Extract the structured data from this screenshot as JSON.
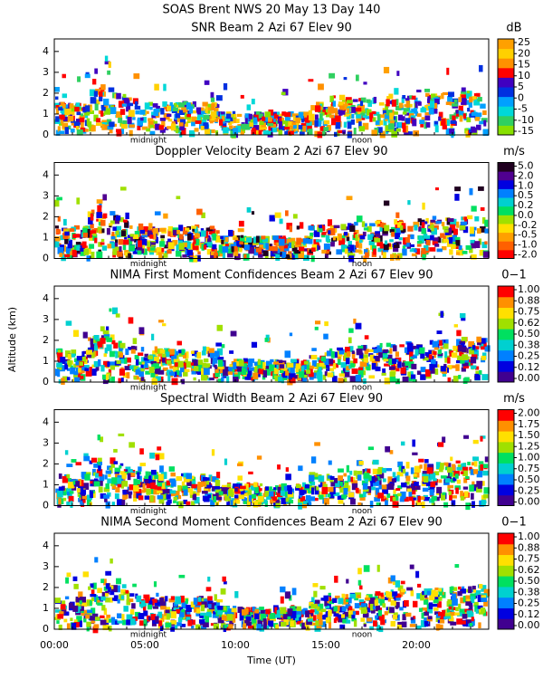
{
  "figure": {
    "title": "SOAS Brent NWS  20 May 13 Day 140",
    "ylabel": "Altitude (km)",
    "xlabel": "Time (UT)"
  },
  "chart_data": [
    {
      "type": "heatmap",
      "title": "SNR Beam 2 Azi  67 Elev 90",
      "unit": "dB",
      "xlim": [
        0,
        24
      ],
      "ylim": [
        0,
        4.6
      ],
      "yticks": [
        0,
        1,
        2,
        3,
        4
      ],
      "annotations": [
        {
          "text": "midnight",
          "x": 5.2
        },
        {
          "text": "noon",
          "x": 17
        }
      ],
      "colorbar": {
        "ticks": [
          25,
          20,
          15,
          10,
          5,
          0,
          -5,
          -10,
          -15
        ],
        "colors": [
          "#88e000",
          "#30d060",
          "#00d8d8",
          "#00a0ff",
          "#0030e0",
          "#4000c0",
          "#ff0000",
          "#ff9000",
          "#ffd000",
          "#ffa000"
        ]
      }
    },
    {
      "type": "heatmap",
      "title": "Doppler Velocity Beam 2 Azi  67 Elev 90",
      "unit": "m/s",
      "xlim": [
        0,
        24
      ],
      "ylim": [
        0,
        4.6
      ],
      "yticks": [
        0,
        1,
        2,
        3,
        4
      ],
      "annotations": [
        {
          "text": "midnight",
          "x": 5.2
        },
        {
          "text": "noon",
          "x": 17
        }
      ],
      "colorbar": {
        "ticks": [
          {
            "value": 5,
            "label": "5.0"
          },
          {
            "value": 2,
            "label": "2.0"
          },
          {
            "value": 1,
            "label": "1.0"
          },
          {
            "value": 0.5,
            "label": "0.5"
          },
          {
            "value": 0.2,
            "label": "0.2"
          },
          {
            "value": 0,
            "label": "0.0"
          },
          {
            "value": -0.2,
            "label": "-0.2"
          },
          {
            "value": -0.5,
            "label": "-0.5"
          },
          {
            "value": -1,
            "label": "-1.0"
          },
          {
            "value": -2,
            "label": "-2.0"
          }
        ],
        "colors": [
          "#ff0000",
          "#ff6000",
          "#ffa000",
          "#ffe000",
          "#a0e000",
          "#00e060",
          "#00d0d0",
          "#0080ff",
          "#0000e0",
          "#500090",
          "#200020"
        ]
      }
    },
    {
      "type": "heatmap",
      "title": "NIMA First Moment Confidences Beam 2 Azi  67 Elev 90",
      "unit": "0−1",
      "xlim": [
        0,
        24
      ],
      "ylim": [
        0,
        4.6
      ],
      "yticks": [
        0,
        1,
        2,
        3,
        4
      ],
      "annotations": [
        {
          "text": "midnight",
          "x": 5.2
        },
        {
          "text": "noon",
          "x": 17
        }
      ],
      "colorbar": {
        "ticks": [
          {
            "value": 1,
            "label": "1.00"
          },
          {
            "value": 0.88,
            "label": "0.88"
          },
          {
            "value": 0.75,
            "label": "0.75"
          },
          {
            "value": 0.62,
            "label": "0.62"
          },
          {
            "value": 0.5,
            "label": "0.50"
          },
          {
            "value": 0.38,
            "label": "0.38"
          },
          {
            "value": 0.25,
            "label": "0.25"
          },
          {
            "value": 0.12,
            "label": "0.12"
          },
          {
            "value": 0,
            "label": "0.00"
          }
        ],
        "colors": [
          "#400090",
          "#0000e0",
          "#0080ff",
          "#00d0d0",
          "#00e060",
          "#a0e000",
          "#ffe000",
          "#ff9000",
          "#ff0000"
        ]
      }
    },
    {
      "type": "heatmap",
      "title": "Spectral Width Beam 2 Azi  67 Elev 90",
      "unit": "m/s",
      "xlim": [
        0,
        24
      ],
      "ylim": [
        0,
        4.6
      ],
      "yticks": [
        0,
        1,
        2,
        3,
        4
      ],
      "annotations": [
        {
          "text": "midnight",
          "x": 5.2
        },
        {
          "text": "noon",
          "x": 17
        }
      ],
      "colorbar": {
        "ticks": [
          {
            "value": 2,
            "label": "2.00"
          },
          {
            "value": 1.75,
            "label": "1.75"
          },
          {
            "value": 1.5,
            "label": "1.50"
          },
          {
            "value": 1.25,
            "label": "1.25"
          },
          {
            "value": 1,
            "label": "1.00"
          },
          {
            "value": 0.75,
            "label": "0.75"
          },
          {
            "value": 0.5,
            "label": "0.50"
          },
          {
            "value": 0.25,
            "label": "0.25"
          },
          {
            "value": 0,
            "label": "0.00"
          }
        ],
        "colors": [
          "#400090",
          "#0000e0",
          "#0080ff",
          "#00d0d0",
          "#00e060",
          "#a0e000",
          "#ffe000",
          "#ff9000",
          "#ff0000"
        ]
      }
    },
    {
      "type": "heatmap",
      "title": "NIMA Second Moment Confidences Beam 2 Azi  67 Elev 90",
      "unit": "0−1",
      "xlim": [
        0,
        24
      ],
      "ylim": [
        0,
        4.6
      ],
      "yticks": [
        0,
        1,
        2,
        3,
        4
      ],
      "xticks": [
        {
          "value": 0,
          "label": "00:00"
        },
        {
          "value": 5,
          "label": "05:00"
        },
        {
          "value": 10,
          "label": "10:00"
        },
        {
          "value": 15,
          "label": "15:00"
        },
        {
          "value": 20,
          "label": "20:00"
        }
      ],
      "annotations": [
        {
          "text": "midnight",
          "x": 5.2
        },
        {
          "text": "noon",
          "x": 17
        }
      ],
      "colorbar": {
        "ticks": [
          {
            "value": 1,
            "label": "1.00"
          },
          {
            "value": 0.88,
            "label": "0.88"
          },
          {
            "value": 0.75,
            "label": "0.75"
          },
          {
            "value": 0.62,
            "label": "0.62"
          },
          {
            "value": 0.5,
            "label": "0.50"
          },
          {
            "value": 0.38,
            "label": "0.38"
          },
          {
            "value": 0.25,
            "label": "0.25"
          },
          {
            "value": 0.12,
            "label": "0.12"
          },
          {
            "value": 0,
            "label": "0.00"
          }
        ],
        "colors": [
          "#400090",
          "#0000e0",
          "#0080ff",
          "#00d0d0",
          "#00e060",
          "#a0e000",
          "#ffe000",
          "#ff9000",
          "#ff0000"
        ]
      }
    }
  ]
}
